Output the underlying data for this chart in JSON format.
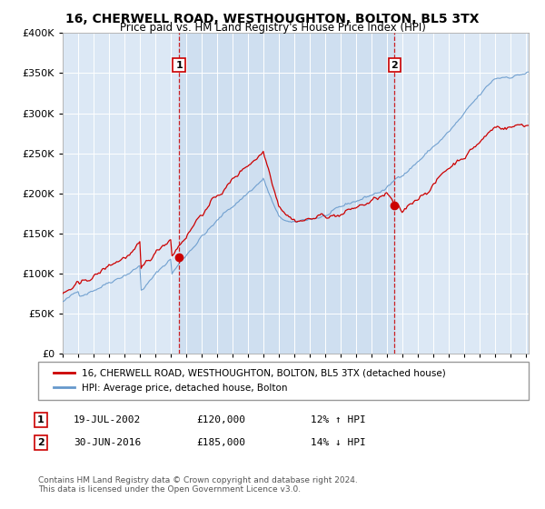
{
  "title": "16, CHERWELL ROAD, WESTHOUGHTON, BOLTON, BL5 3TX",
  "subtitle": "Price paid vs. HM Land Registry's House Price Index (HPI)",
  "title_fontsize": 10,
  "subtitle_fontsize": 8.5,
  "background_color": "#ffffff",
  "plot_bg_color": "#dce8f5",
  "shaded_color": "#c8dcef",
  "ylabel": "",
  "ylim": [
    0,
    400000
  ],
  "yticks": [
    0,
    50000,
    100000,
    150000,
    200000,
    250000,
    300000,
    350000,
    400000
  ],
  "ytick_labels": [
    "£0",
    "£50K",
    "£100K",
    "£150K",
    "£200K",
    "£250K",
    "£300K",
    "£350K",
    "£400K"
  ],
  "xlim_start": 1995.0,
  "xlim_end": 2025.2,
  "sale1_date": 2002.54,
  "sale1_price": 120000,
  "sale1_label": "1",
  "sale1_hpi_diff": "12% ↑ HPI",
  "sale1_date_str": "19-JUL-2002",
  "sale2_date": 2016.5,
  "sale2_price": 185000,
  "sale2_label": "2",
  "sale2_hpi_diff": "14% ↓ HPI",
  "sale2_date_str": "30-JUN-2016",
  "legend_entry1": "16, CHERWELL ROAD, WESTHOUGHTON, BOLTON, BL5 3TX (detached house)",
  "legend_entry2": "HPI: Average price, detached house, Bolton",
  "footer1": "Contains HM Land Registry data © Crown copyright and database right 2024.",
  "footer2": "This data is licensed under the Open Government Licence v3.0.",
  "line_red": "#cc0000",
  "line_blue": "#6699cc",
  "grid_color": "#ffffff",
  "dashed_color": "#cc0000"
}
